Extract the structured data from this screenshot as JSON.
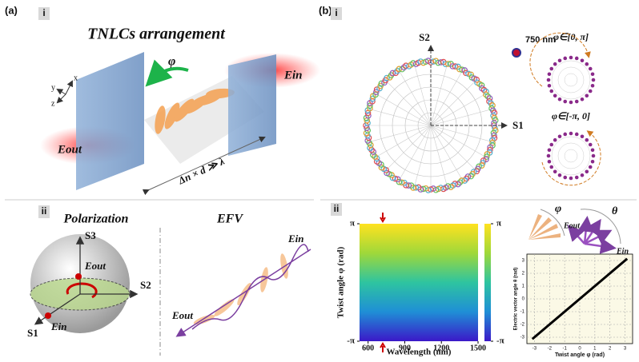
{
  "panel_a": {
    "label": "(a)",
    "part_i": {
      "label": "i",
      "title": "TNLCs arrangement",
      "twist_symbol": "φ",
      "e_in": "Ein",
      "e_out": "Eout",
      "condition": "Δn × d ≫ λ",
      "axes": [
        "x",
        "y",
        "z"
      ]
    },
    "part_ii": {
      "label": "ii",
      "left_title": "Polarization",
      "right_title": "EFV",
      "sphere_axes": [
        "S3",
        "S2",
        "S1"
      ],
      "sphere_e_out": "Eout",
      "sphere_e_in": "Ein",
      "efv_e_in": "Ein",
      "efv_e_out": "Eout"
    }
  },
  "panel_b": {
    "label": "(b)",
    "part_i": {
      "label": "i",
      "axis_s2": "S2",
      "axis_s1": "S1",
      "wavelength": "750 nm",
      "range_top": "φ∈[0, π]",
      "range_bottom": "φ∈[-π, 0]"
    },
    "part_ii": {
      "label": "ii",
      "icon_phi": "φ",
      "icon_theta": "θ",
      "icon_e_out": "Eout",
      "icon_e_in": "Ein"
    }
  },
  "chart_data": [
    {
      "type": "heatmap",
      "x_label": "Wavelength (nm)",
      "y_label": "Twist angle φ (rad)",
      "xlim": [
        530,
        1500
      ],
      "xticks": [
        600,
        900,
        1200,
        1500
      ],
      "ylim": [
        -3.14159,
        3.14159
      ],
      "yticks": [
        {
          "value": 3.14159,
          "label": "π"
        },
        {
          "value": -3.14159,
          "label": "-π"
        }
      ],
      "colorbar_ticks": [
        {
          "value": 3.14159,
          "label": "π"
        },
        {
          "value": -3.14159,
          "label": "-π"
        }
      ],
      "colors": [
        "#3b18c8",
        "#1f8fd6",
        "#2ec4a0",
        "#9fd83a",
        "#ffe21f"
      ]
    },
    {
      "type": "line",
      "x_label": "Twist angle φ (rad)",
      "y_label": "Electric vector angle θ (rad)",
      "xlim": [
        -3.5,
        3.5
      ],
      "ylim": [
        -3.5,
        3.5
      ],
      "xticks": [
        -3,
        -2,
        -1,
        0,
        1,
        2,
        3
      ],
      "yticks": [
        -3,
        -2,
        -1,
        0,
        1,
        2,
        3
      ],
      "grid": true,
      "series": [
        {
          "color": "#000000",
          "x": [
            -3.14159,
            3.14159
          ],
          "values": [
            -3.14159,
            3.14159
          ]
        }
      ]
    }
  ]
}
